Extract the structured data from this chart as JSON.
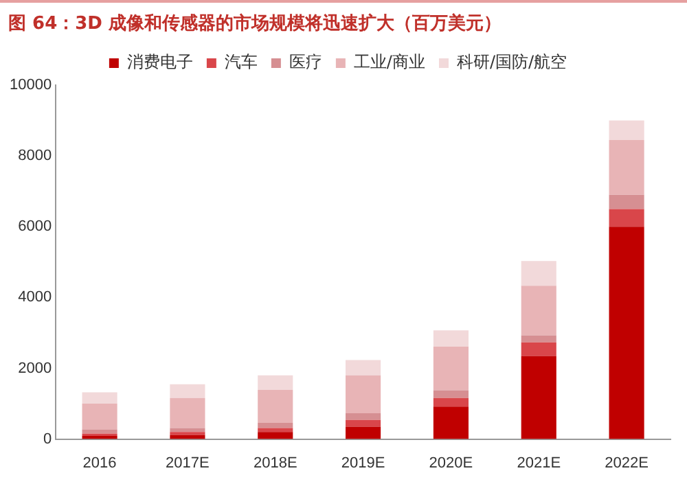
{
  "chart_data": {
    "type": "bar",
    "title": "图 64：3D 成像和传感器的市场规模将迅速扩大（百万美元）",
    "categories": [
      "2016",
      "2017E",
      "2018E",
      "2019E",
      "2020E",
      "2021E",
      "2022E"
    ],
    "stacked": true,
    "series": [
      {
        "name": "消费电子",
        "color": "#c00000",
        "values": [
          90,
          120,
          200,
          350,
          920,
          2350,
          6000
        ]
      },
      {
        "name": "汽车",
        "color": "#d9464a",
        "values": [
          60,
          80,
          110,
          190,
          240,
          380,
          500
        ]
      },
      {
        "name": "医疗",
        "color": "#d68f92",
        "values": [
          125,
          110,
          150,
          190,
          220,
          200,
          400
        ]
      },
      {
        "name": "工业/商业",
        "color": "#e8b4b6",
        "values": [
          725,
          850,
          930,
          1070,
          1230,
          1400,
          1550
        ]
      },
      {
        "name": "科研/国防/航空",
        "color": "#f2d9da",
        "values": [
          320,
          390,
          410,
          430,
          460,
          700,
          550
        ]
      }
    ],
    "ylim": [
      0,
      10000
    ],
    "yticks": [
      0,
      2000,
      4000,
      6000,
      8000,
      10000
    ],
    "grid": false,
    "legend": "top"
  }
}
